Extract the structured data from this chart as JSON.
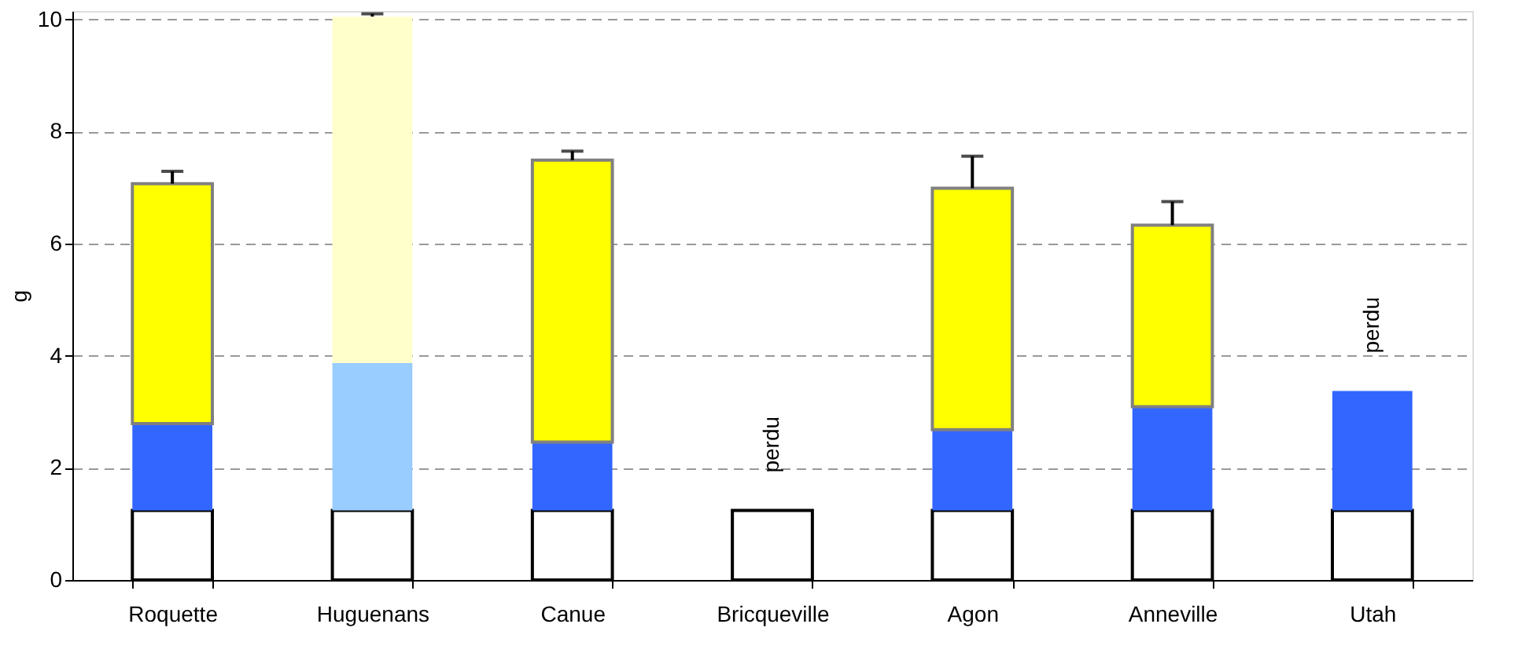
{
  "chart_data": {
    "type": "bar",
    "stacked": true,
    "ylabel": "g",
    "categories": [
      "Roquette",
      "Huguenans",
      "Canue",
      "Bricqueville",
      "Agon",
      "Anneville",
      "Utah"
    ],
    "series": [
      {
        "color": "#ffffff",
        "values": [
          1.24,
          1.24,
          1.24,
          1.24,
          1.24,
          1.24,
          1.24
        ]
      },
      {
        "colors": [
          "#3366ff",
          "#99ccff",
          "#3366ff",
          null,
          "#3366ff",
          "#3366ff",
          "#3366ff"
        ],
        "values": [
          1.55,
          2.63,
          1.22,
          null,
          1.44,
          1.85,
          2.13
        ]
      },
      {
        "color": "#ffff00",
        "colors": [
          "#ffff00",
          "#ffffcc",
          "#ffff00",
          null,
          "#ffff00",
          "#ffff00",
          null
        ],
        "values": [
          4.28,
          6.18,
          5.03,
          null,
          4.31,
          3.24,
          null
        ],
        "errors": [
          0.22,
          0.05,
          0.16,
          null,
          0.57,
          0.42,
          null
        ]
      }
    ],
    "annotations": [
      "perdu",
      "perdu"
    ],
    "ylim": [
      0,
      10.15
    ],
    "yticks": [
      0,
      2,
      4,
      6,
      8,
      10
    ],
    "grid": "y"
  }
}
